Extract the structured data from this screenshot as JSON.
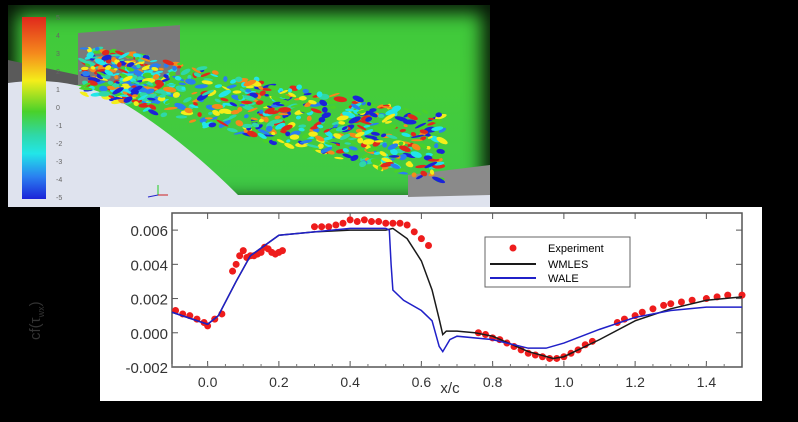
{
  "simulation": {
    "colorbar_labels": [
      "5",
      "4",
      "3",
      "2",
      "1",
      "0",
      "-1",
      "-2",
      "-3",
      "-4",
      "-5"
    ],
    "colors": {
      "background_flow": "#44cc3a",
      "wall": "#7a7a7a",
      "floor": "#dfe3ee"
    }
  },
  "chart_data": {
    "type": "line",
    "xlabel": "x/c",
    "ylabel": "cf(τ",
    "ylabel_sub": "wx",
    "ylabel_close": ")",
    "xlim": [
      -0.1,
      1.5
    ],
    "ylim": [
      -0.002,
      0.007
    ],
    "xticks": [
      "0.0",
      "0.2",
      "0.4",
      "0.6",
      "0.8",
      "1.0",
      "1.2",
      "1.4"
    ],
    "yticks": [
      "-0.002",
      "0.000",
      "0.002",
      "0.004",
      "0.006"
    ],
    "legend_position": "top-right",
    "series": [
      {
        "name": "Experiment",
        "style": "markers",
        "color": "#ee1c1c",
        "x": [
          -0.09,
          -0.07,
          -0.05,
          -0.03,
          -0.01,
          0.0,
          0.02,
          0.04,
          0.07,
          0.08,
          0.09,
          0.1,
          0.11,
          0.12,
          0.13,
          0.14,
          0.15,
          0.16,
          0.17,
          0.18,
          0.19,
          0.2,
          0.21,
          0.3,
          0.32,
          0.34,
          0.36,
          0.38,
          0.4,
          0.42,
          0.44,
          0.46,
          0.48,
          0.5,
          0.52,
          0.54,
          0.56,
          0.58,
          0.6,
          0.62,
          0.76,
          0.78,
          0.8,
          0.82,
          0.84,
          0.86,
          0.88,
          0.9,
          0.92,
          0.94,
          0.96,
          0.98,
          1.0,
          1.02,
          1.04,
          1.06,
          1.08,
          1.15,
          1.17,
          1.2,
          1.22,
          1.25,
          1.28,
          1.3,
          1.33,
          1.36,
          1.4,
          1.43,
          1.46,
          1.5
        ],
        "y": [
          0.0013,
          0.0011,
          0.001,
          0.0008,
          0.0006,
          0.0004,
          0.0008,
          0.0011,
          0.0036,
          0.004,
          0.0045,
          0.0048,
          0.0044,
          0.0045,
          0.0045,
          0.0046,
          0.0047,
          0.005,
          0.0049,
          0.0047,
          0.0046,
          0.0047,
          0.0048,
          0.0062,
          0.0062,
          0.0062,
          0.0063,
          0.0064,
          0.0066,
          0.0065,
          0.0066,
          0.0065,
          0.0065,
          0.0064,
          0.0064,
          0.0064,
          0.0063,
          0.0059,
          0.0055,
          0.0051,
          0.0,
          -0.0001,
          -0.0003,
          -0.0004,
          -0.0006,
          -0.0008,
          -0.001,
          -0.0012,
          -0.0013,
          -0.0014,
          -0.0015,
          -0.0015,
          -0.0014,
          -0.0012,
          -0.001,
          -0.0007,
          -0.0005,
          0.0006,
          0.0008,
          0.001,
          0.0012,
          0.0014,
          0.0016,
          0.0017,
          0.0018,
          0.0019,
          0.002,
          0.0021,
          0.0022,
          0.0022
        ]
      },
      {
        "name": "WMLES",
        "style": "line",
        "color": "#1a1a1a",
        "x": [
          -0.1,
          0.0,
          0.03,
          0.08,
          0.12,
          0.2,
          0.3,
          0.4,
          0.5,
          0.52,
          0.56,
          0.6,
          0.63,
          0.65,
          0.66,
          0.67,
          0.7,
          0.75,
          0.8,
          0.9,
          0.97,
          1.0,
          1.1,
          1.2,
          1.3,
          1.4,
          1.5
        ],
        "y": [
          0.0012,
          0.0005,
          0.001,
          0.003,
          0.0045,
          0.0057,
          0.0059,
          0.006,
          0.006,
          0.0061,
          0.0055,
          0.0042,
          0.0025,
          0.0008,
          -0.0001,
          0.0001,
          0.0001,
          0.0,
          -0.0002,
          -0.0011,
          -0.0015,
          -0.0014,
          -0.0004,
          0.0007,
          0.0014,
          0.0019,
          0.0021
        ]
      },
      {
        "name": "WALE",
        "style": "line",
        "color": "#2020c8",
        "x": [
          -0.1,
          0.0,
          0.03,
          0.08,
          0.12,
          0.2,
          0.3,
          0.4,
          0.5,
          0.51,
          0.515,
          0.52,
          0.55,
          0.6,
          0.63,
          0.65,
          0.66,
          0.68,
          0.7,
          0.8,
          0.9,
          0.95,
          1.0,
          1.1,
          1.2,
          1.3,
          1.4,
          1.5
        ],
        "y": [
          0.0012,
          0.0005,
          0.001,
          0.003,
          0.0045,
          0.0057,
          0.0059,
          0.0061,
          0.0061,
          0.006,
          0.004,
          0.0025,
          0.0019,
          0.0013,
          0.0007,
          -0.0008,
          -0.0011,
          -0.0004,
          -0.0002,
          -0.0004,
          -0.0009,
          -0.0009,
          -0.0006,
          0.0002,
          0.0009,
          0.0013,
          0.0015,
          0.0015
        ]
      }
    ]
  }
}
